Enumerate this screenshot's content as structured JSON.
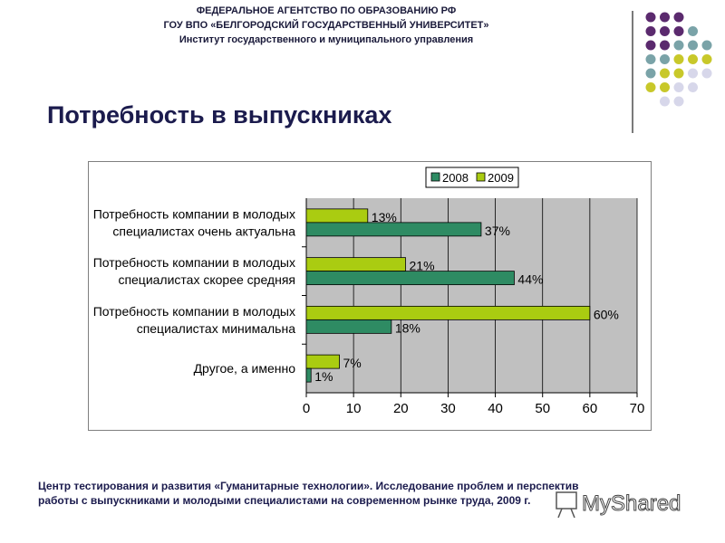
{
  "header": {
    "line1": "ФЕДЕРАЛЬНОЕ АГЕНТСТВО ПО ОБРАЗОВАНИЮ РФ",
    "line2": "ГОУ ВПО «БЕЛГОРОДСКИЙ ГОСУДАРСТВЕННЫЙ УНИВЕРСИТЕТ»",
    "line3": "Институт государственного и муниципального управления"
  },
  "slide_title": "Потребность в выпускниках",
  "footer": {
    "line1": "Центр тестирования и развития «Гуманитарные технологии». Исследование проблем и перспектив",
    "line2": "работы с выпускниками и молодыми специалистами на современном рынке труда, 2009 г."
  },
  "logo_text": "MyShared",
  "colors": {
    "purple": "#5b2a6e",
    "teal": "#7aa3a8",
    "yellow": "#c8c82a",
    "lavender": "#d7d7ea",
    "series_2008": "#2e8b63",
    "series_2009": "#aacc11",
    "plot_bg": "#c0c0c0"
  },
  "chart_data": {
    "type": "bar",
    "orientation": "horizontal",
    "categories": [
      [
        "Потребность компании в молодых",
        "специалистах очень актуальна"
      ],
      [
        "Потребность компании в молодых",
        "специалистах скорее средняя"
      ],
      [
        "Потребность компании в молодых",
        "специалистах  минимальна"
      ],
      [
        "Другое, а именно"
      ]
    ],
    "series": [
      {
        "name": "2009",
        "values": [
          13,
          21,
          60,
          7
        ],
        "labels": [
          "13%",
          "21%",
          "60%",
          "7%"
        ]
      },
      {
        "name": "2008",
        "values": [
          37,
          44,
          18,
          1
        ],
        "labels": [
          "37%",
          "44%",
          "18%",
          "1%"
        ]
      }
    ],
    "legend": [
      "2008",
      "2009"
    ],
    "xlim": [
      0,
      70
    ],
    "xticks": [
      "0",
      "10",
      "20",
      "30",
      "40",
      "50",
      "60",
      "70"
    ],
    "grid": true,
    "legend_position": "top"
  }
}
